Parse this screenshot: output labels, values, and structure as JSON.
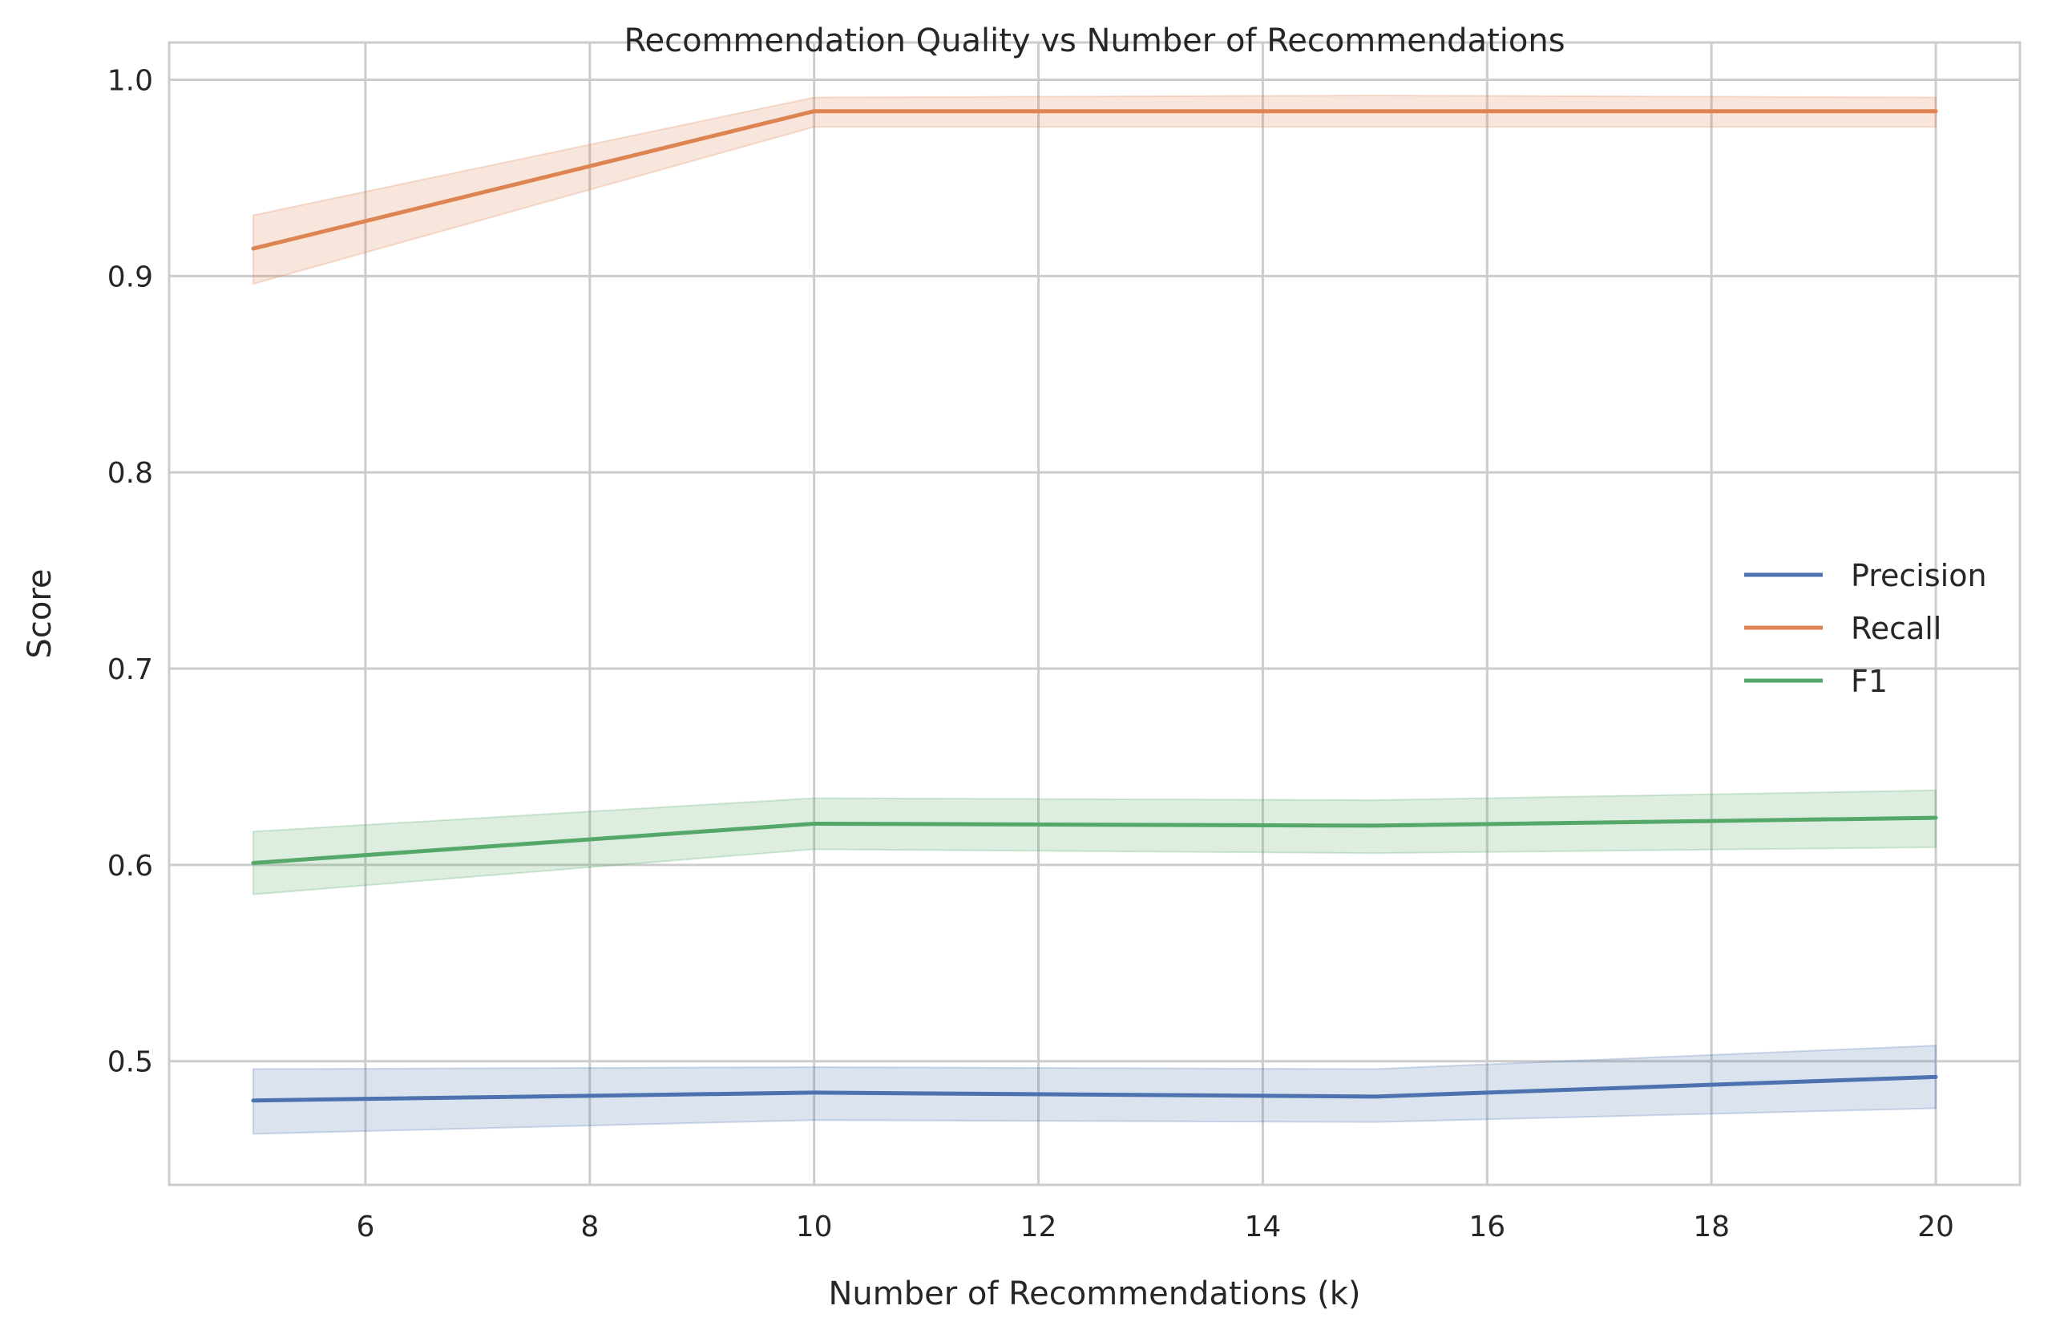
{
  "chart_data": {
    "type": "line",
    "title": "Recommendation Quality vs Number of Recommendations",
    "xlabel": "Number of Recommendations (k)",
    "ylabel": "Score",
    "xlim": [
      4.25,
      20.75
    ],
    "ylim": [
      0.437,
      1.019
    ],
    "xticks": [
      6,
      8,
      10,
      12,
      14,
      16,
      18,
      20
    ],
    "yticks": [
      0.5,
      0.6,
      0.7,
      0.8,
      0.9,
      1.0
    ],
    "ytick_labels": [
      "0.5",
      "0.6",
      "0.7",
      "0.8",
      "0.9",
      "1.0"
    ],
    "x": [
      5,
      10,
      15,
      20
    ],
    "grid": true,
    "legend_position": "center-right",
    "series": [
      {
        "name": "Precision",
        "color": "#4c72b0",
        "values": [
          0.48,
          0.484,
          0.482,
          0.492
        ],
        "ci_lower": [
          0.463,
          0.47,
          0.469,
          0.476
        ],
        "ci_upper": [
          0.496,
          0.497,
          0.496,
          0.508
        ]
      },
      {
        "name": "Recall",
        "color": "#dd8452",
        "values": [
          0.914,
          0.984,
          0.984,
          0.984
        ],
        "ci_lower": [
          0.896,
          0.976,
          0.976,
          0.976
        ],
        "ci_upper": [
          0.931,
          0.991,
          0.992,
          0.991
        ]
      },
      {
        "name": "F1",
        "color": "#55a868",
        "values": [
          0.601,
          0.621,
          0.62,
          0.624
        ],
        "ci_lower": [
          0.585,
          0.608,
          0.606,
          0.609
        ],
        "ci_upper": [
          0.617,
          0.634,
          0.633,
          0.638
        ]
      }
    ]
  }
}
